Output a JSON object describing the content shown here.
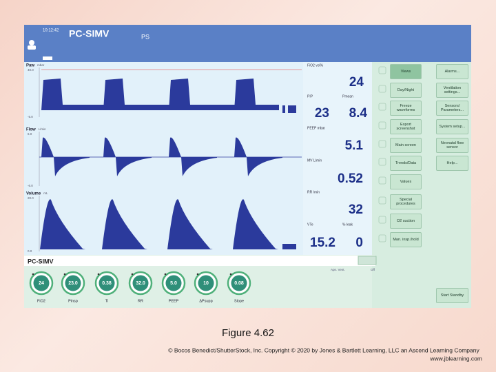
{
  "header": {
    "time": "10:12:42",
    "mode": "PC-SIMV",
    "submode": "PS"
  },
  "waveforms": [
    {
      "label": "Paw",
      "unit": "mbar",
      "max": "40.0",
      "min": "-5.0"
    },
    {
      "label": "Flow",
      "unit": "L/min",
      "max": "6.0",
      "min": "-6.0"
    },
    {
      "label": "Volume",
      "unit": "mL",
      "max": "20.0",
      "min": "0.0"
    }
  ],
  "measurements": [
    {
      "label": "FiO2 vol%",
      "value": "24"
    },
    {
      "label": "PIP",
      "value": "23"
    },
    {
      "label": "Pmean",
      "value": "8.4"
    },
    {
      "label": "PEEP mbar",
      "value": "5.1"
    },
    {
      "label": "MV L/min",
      "value": "0.52"
    },
    {
      "label": "RR /min",
      "value": "32"
    },
    {
      "label": "VTe",
      "value": "15.2"
    },
    {
      "label": "% leak",
      "value": "0"
    }
  ],
  "buttons": {
    "column1": [
      "Views",
      "Day/Night",
      "Freeze waveforms",
      "Export screenshot",
      "Main screen",
      "Trends/Data",
      "Values",
      "Special procedures",
      "O2 suction",
      "Man. insp./hold"
    ],
    "column2": [
      "Alarms...",
      "Ventilation settings...",
      "Sensors/ Parameters...",
      "System setup...",
      "Neonatal flow sensor",
      "Help..."
    ],
    "standby": "Start Standby"
  },
  "bottom": {
    "mode": "PC-SIMV",
    "apnea_label": "Apn. Vent.",
    "apnea_value": "Off",
    "settings": [
      {
        "value": "24",
        "label": "FiO2"
      },
      {
        "value": "23.0",
        "label": "Pinsp"
      },
      {
        "value": "0.38",
        "label": "Ti"
      },
      {
        "value": "32.0",
        "label": "RR"
      },
      {
        "value": "5.0",
        "label": "PEEP"
      },
      {
        "value": "10",
        "label": "ΔPsupp"
      },
      {
        "value": "0.08",
        "label": "Slope"
      }
    ]
  },
  "caption": "Figure 4.62",
  "copyright": "© Bocos Benedict/ShutterStock, Inc. Copyright © 2020 by Jones & Bartlett Learning, LLC an Ascend Learning Company",
  "website": "www.jblearning.com"
}
